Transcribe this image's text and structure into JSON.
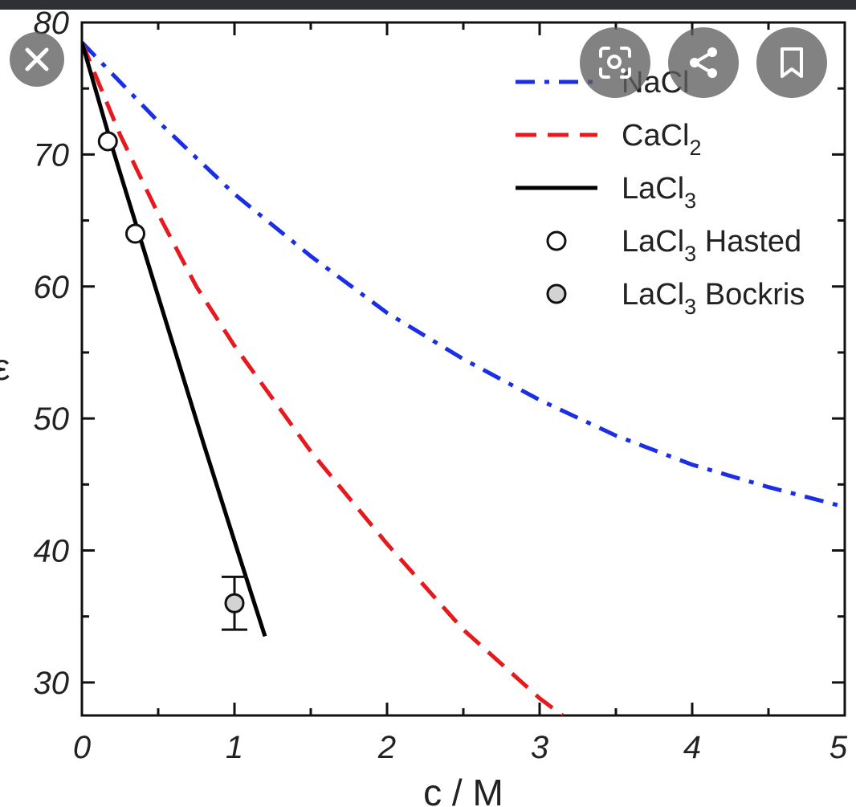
{
  "chart_data": {
    "type": "line",
    "xlabel": "c / M",
    "ylabel": "ε",
    "xlim": [
      0,
      5
    ],
    "ylim": [
      27.5,
      80
    ],
    "x_ticks": [
      "0",
      "1",
      "2",
      "3",
      "4",
      "5"
    ],
    "y_ticks": [
      "30",
      "40",
      "50",
      "60",
      "70",
      "80"
    ],
    "series": [
      {
        "name": "NaCl",
        "name_main": "NaCl",
        "name_sub": "",
        "name_suffix": "",
        "style": "dashdot",
        "color": "#1a2ee6",
        "x": [
          0,
          0.25,
          0.5,
          1.0,
          1.5,
          2.0,
          2.5,
          3.0,
          3.5,
          4.0,
          4.5,
          5.0
        ],
        "y": [
          78.5,
          75.5,
          72.5,
          67.0,
          62.3,
          58.0,
          54.5,
          51.4,
          48.7,
          46.5,
          44.8,
          43.3
        ]
      },
      {
        "name": "CaCl2",
        "name_main": "CaCl",
        "name_sub": "2",
        "name_suffix": "",
        "style": "dashed",
        "color": "#e6191e",
        "x": [
          0,
          0.25,
          0.5,
          0.75,
          1.0,
          1.5,
          2.0,
          2.5,
          3.0,
          3.15
        ],
        "y": [
          78.5,
          71.5,
          65.5,
          60.0,
          55.5,
          47.5,
          40.5,
          34.0,
          28.8,
          27.5
        ]
      },
      {
        "name": "LaCl3",
        "name_main": "LaCl",
        "name_sub": "3",
        "name_suffix": "",
        "style": "solid",
        "color": "#000000",
        "x": [
          0,
          0.2,
          0.4,
          0.6,
          0.8,
          1.0,
          1.2
        ],
        "y": [
          78.5,
          70.5,
          63.0,
          55.5,
          48.0,
          40.7,
          33.5
        ]
      }
    ],
    "points": [
      {
        "name": "LaCl3 Hasted",
        "name_main": "LaCl",
        "name_sub": "3",
        "name_suffix": " Hasted",
        "fill": "#ffffff",
        "data": [
          {
            "x": 0.17,
            "y": 71
          },
          {
            "x": 0.35,
            "y": 64
          }
        ]
      },
      {
        "name": "LaCl3 Bockris",
        "name_main": "LaCl",
        "name_sub": "3",
        "name_suffix": " Bockris",
        "fill": "#d3d3d3",
        "data": [
          {
            "x": 1.0,
            "y": 36,
            "err": 2
          }
        ]
      }
    ]
  },
  "overlay": {
    "buttons": [
      "close-icon",
      "lens-icon",
      "share-icon",
      "bookmark-icon"
    ]
  }
}
